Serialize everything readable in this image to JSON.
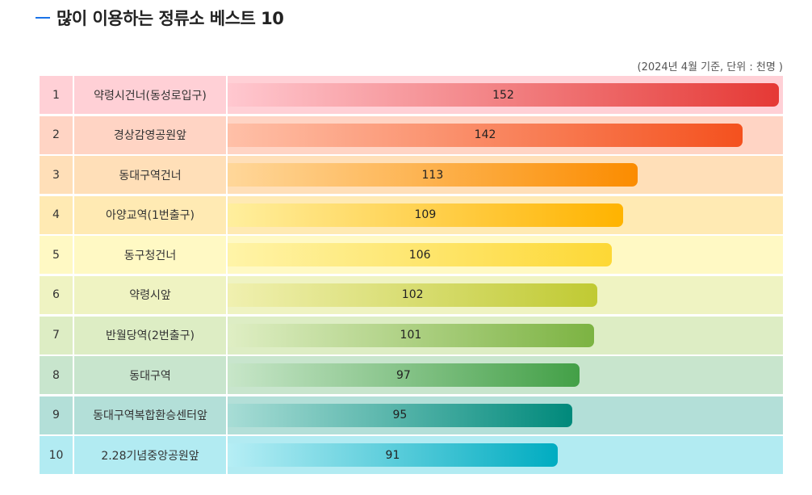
{
  "title": "많이 이용하는 정류소 베스트 10",
  "note": "(2024년 4월 기준, 단위 : 천명 )",
  "chart_data": {
    "type": "bar",
    "orientation": "horizontal",
    "title": "많이 이용하는 정류소 베스트 10",
    "unit": "천명",
    "xlim": [
      0,
      152
    ],
    "ranks": [
      "1",
      "2",
      "3",
      "4",
      "5",
      "6",
      "7",
      "8",
      "9",
      "10"
    ],
    "categories": [
      "약령시건너(동성로입구)",
      "경상감영공원앞",
      "동대구역건너",
      "아양교역(1번출구)",
      "동구청건너",
      "약령시앞",
      "반월당역(2번출구)",
      "동대구역",
      "동대구역복합환승센터앞",
      "2.28기념중앙공원앞"
    ],
    "values": [
      152,
      142,
      113,
      109,
      106,
      102,
      101,
      97,
      95,
      91
    ],
    "row_colors": [
      "#ffd0d6",
      "#ffd4c4",
      "#ffdfb8",
      "#ffeab3",
      "#fff9c4",
      "#eff3c2",
      "#ddedc4",
      "#c8e5cd",
      "#b3dfd8",
      "#b2ebf2"
    ],
    "bar_start_colors": [
      "#ffc8d0",
      "#ffc0a8",
      "#ffd79a",
      "#ffef9e",
      "#fff4a8",
      "#f0f0b0",
      "#dfeec4",
      "#c8e6c9",
      "#a8ddd6",
      "#b6eef5"
    ],
    "bar_end_colors": [
      "#e53935",
      "#f4511e",
      "#fb8c00",
      "#ffb300",
      "#fdd835",
      "#c0ca33",
      "#7cb342",
      "#43a047",
      "#00897b",
      "#00acc1"
    ]
  }
}
